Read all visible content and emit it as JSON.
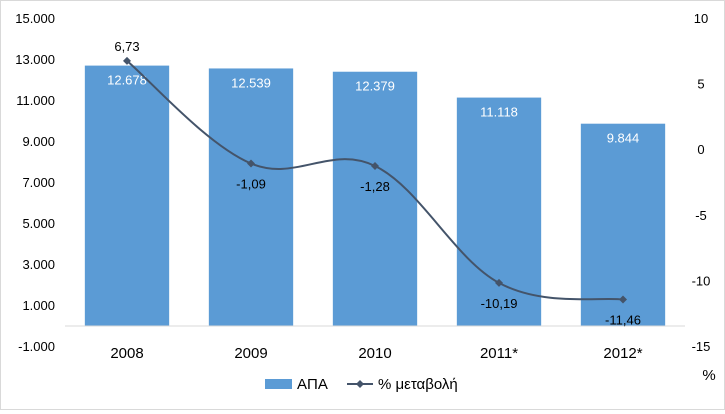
{
  "chart_data": {
    "type": "bar",
    "categories": [
      "2008",
      "2009",
      "2010",
      "2011*",
      "2012*"
    ],
    "series": [
      {
        "name": "ΑΠΑ",
        "type": "bar",
        "axis": "left",
        "values": [
          12678,
          12539,
          12379,
          11118,
          9844
        ],
        "labels": [
          "12.678",
          "12.539",
          "12.379",
          "11.118",
          "9.844"
        ],
        "color": "#5b9bd5"
      },
      {
        "name": "% μεταβολή",
        "type": "line",
        "axis": "right",
        "values": [
          6.73,
          -1.09,
          -1.28,
          -10.19,
          -11.46
        ],
        "labels": [
          "6,73",
          "-1,09",
          "-1,28",
          "-10,19",
          "-11,46"
        ],
        "color": "#44546a"
      }
    ],
    "left_axis": {
      "ylim": [
        -1000,
        15000
      ],
      "ticks": [
        -1000,
        1000,
        3000,
        5000,
        7000,
        9000,
        11000,
        13000,
        15000
      ],
      "tick_labels": [
        "-1.000",
        "1.000",
        "3.000",
        "5.000",
        "7.000",
        "9.000",
        "11.000",
        "13.000",
        "15.000"
      ]
    },
    "right_axis": {
      "ylim": [
        -15,
        10
      ],
      "ticks": [
        -15,
        -10,
        -5,
        0,
        5,
        10
      ],
      "tick_labels": [
        "-15",
        "-10",
        "-5",
        "0",
        "5",
        "10"
      ],
      "unit_label": "%"
    },
    "legend_position": "bottom",
    "grid": false
  }
}
